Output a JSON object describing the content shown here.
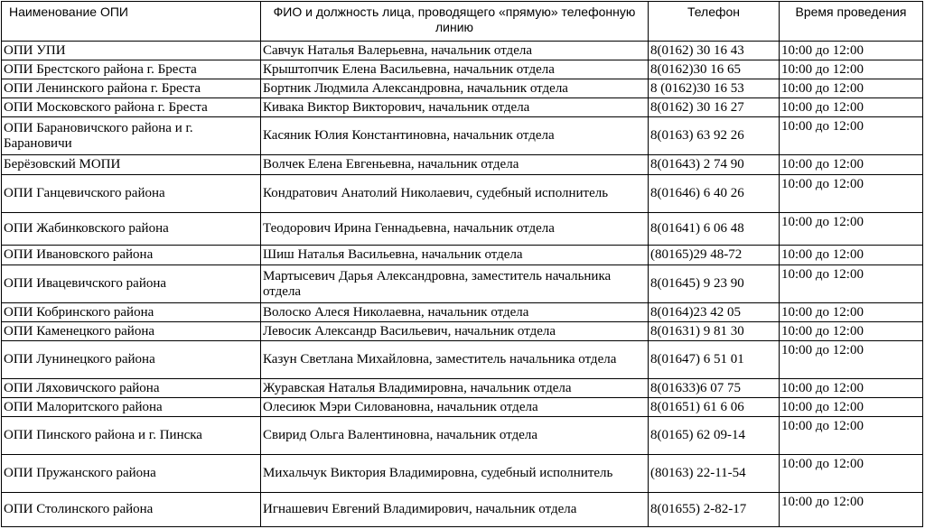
{
  "table": {
    "header": [
      "Наименование ОПИ",
      "ФИО и должность лица, проводящего «прямую» телефонную линию",
      "Телефон",
      "Время проведения"
    ],
    "rows": [
      [
        "ОПИ УПИ",
        "Савчук Наталья Валерьевна, начальник отдела",
        "8(0162) 30 16 43",
        "10:00 до 12:00"
      ],
      [
        "ОПИ Брестского района г. Бреста",
        "Крыштопчик Елена Васильевна, начальник отдела",
        "8(0162)30 16 65",
        "10:00 до 12:00"
      ],
      [
        "ОПИ Ленинского района г. Бреста",
        "Бортник Людмила Александровна, начальник отдела",
        "8 (0162)30 16 53",
        "10:00 до 12:00"
      ],
      [
        "ОПИ Московского района г. Бреста",
        "Кивака Виктор Викторович, начальник отдела",
        "8(0162) 30 16 27",
        "10:00 до 12:00"
      ],
      [
        "ОПИ Барановичского района и г. Барановичи",
        "Касяник Юлия Константиновна, начальник отдела",
        "8(0163) 63 92 26",
        "10:00 до 12:00"
      ],
      [
        "Берёзовский МОПИ",
        "Волчек Елена Евгеньевна, начальник отдела",
        "8(01643) 2 74 90",
        "10:00 до 12:00"
      ],
      [
        "ОПИ Ганцевичского района",
        "Кондратович Анатолий Николаевич, судебный исполнитель",
        "8(01646) 6 40 26",
        "10:00 до 12:00"
      ],
      [
        "ОПИ Жабинковского района",
        "Теодорович Ирина Геннадьевна, начальник отдела",
        "8(01641) 6 06 48",
        "10:00 до 12:00"
      ],
      [
        "ОПИ Ивановского района",
        "Шиш Наталья Васильевна, начальник отдела",
        "(80165)29 48-72",
        "10:00 до 12:00"
      ],
      [
        "ОПИ Ивацевичского района",
        "Мартысевич Дарья Александровна, заместитель начальника отдела",
        "8(01645) 9 23 90",
        "10:00 до 12:00"
      ],
      [
        "ОПИ Кобринского района",
        "Волоско Алеся Николаевна, начальник отдела",
        "8(0164)23 42 05",
        "10:00 до 12:00"
      ],
      [
        "ОПИ Каменецкого района",
        "Левосик Александр Васильевич, начальник отдела",
        "8(01631) 9 81 30",
        "10:00 до 12:00"
      ],
      [
        "ОПИ Лунинецкого района",
        "Казун Светлана Михайловна, заместитель начальника отдела",
        "8(01647) 6 51 01",
        "10:00 до 12:00"
      ],
      [
        "ОПИ Ляховичского района",
        "Журавская Наталья Владимировна, начальник отдела",
        "8(01633)6 07 75",
        "10:00 до 12:00"
      ],
      [
        "ОПИ Малоритского района",
        "Олесиюк Мэри Силовановна, начальник отдела",
        "8(01651) 61 6 06",
        "10:00 до 12:00"
      ],
      [
        "ОПИ Пинского района и г. Пинска",
        "Свирид Ольга Валентиновна, начальник отдела",
        "8(0165) 62 09-14",
        "10:00 до 12:00"
      ],
      [
        "ОПИ Пружанского района",
        "Михальчук Виктория Владимировна, судебный исполнитель",
        "(80163) 22-11-54",
        "10:00 до 12:00"
      ],
      [
        "ОПИ Столинского района",
        "Игнашевич Евгений Владимирович, начальник отдела",
        "8(01655) 2-82-17",
        "10:00 до 12:00"
      ]
    ]
  }
}
